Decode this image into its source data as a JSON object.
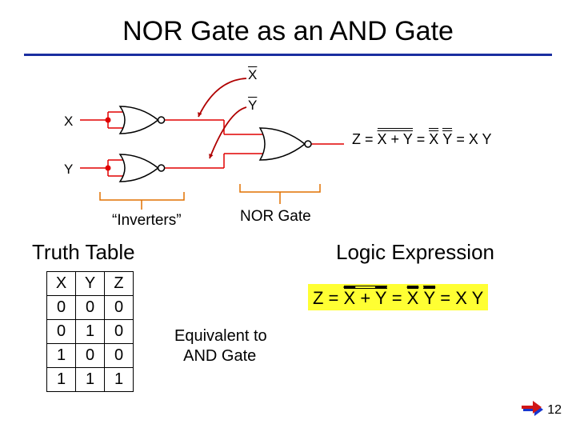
{
  "title": "NOR Gate as an AND Gate",
  "underline_color": "#1a2ea0",
  "circuit": {
    "input_x_label": "X",
    "input_y_label": "Y",
    "xbar_label": "X",
    "ybar_label": "Y",
    "inverters_label": "“Inverters”",
    "nor_gate_label": "NOR Gate",
    "wire_color": "#e00000",
    "gate_stroke": "#000000",
    "bracket_color": "#e07000",
    "arrow_color": "#b00000",
    "dot_color": "#e00000"
  },
  "expression_small": {
    "prefix": "Z = ",
    "t1a": "X",
    "t1b": "Y",
    "t2a": "X",
    "t2b": "Y",
    "t3": "X Y"
  },
  "truth_table": {
    "heading": "Truth Table",
    "columns": [
      "X",
      "Y",
      "Z"
    ],
    "rows": [
      [
        "0",
        "0",
        "0"
      ],
      [
        "0",
        "1",
        "0"
      ],
      [
        "1",
        "0",
        "0"
      ],
      [
        "1",
        "1",
        "1"
      ]
    ],
    "border_color": "#000000"
  },
  "equivalent_label_l1": "Equivalent to",
  "equivalent_label_l2": "AND Gate",
  "logic_expression_heading": "Logic Expression",
  "expression_box": {
    "bg": "#ffff33",
    "prefix": "Z = ",
    "t1a": "X",
    "t1b": "Y",
    "t2a": "X",
    "t2b": "Y",
    "t3": "X Y"
  },
  "page_number": "12",
  "corner_colors": {
    "red": "#d01616",
    "blue": "#1636d0"
  }
}
